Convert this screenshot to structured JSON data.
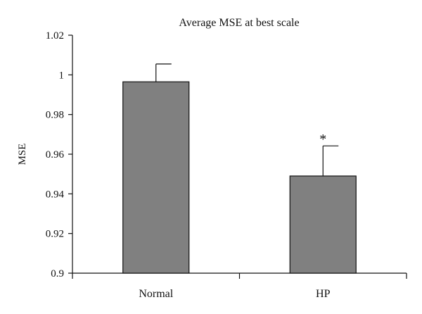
{
  "chart_data": {
    "type": "bar",
    "title": "Average MSE at best scale",
    "xlabel": "",
    "ylabel": "MSE",
    "categories": [
      "Normal",
      "HP"
    ],
    "values": [
      0.9965,
      0.949
    ],
    "error_upper": [
      0.009,
      0.0152
    ],
    "ylim": [
      0.9,
      1.02
    ],
    "yticks": [
      0.9,
      0.92,
      0.94,
      0.96,
      0.98,
      1.0,
      1.02
    ],
    "ytick_labels": [
      "0.9",
      "0.92",
      "0.94",
      "0.96",
      "0.98",
      "1",
      "1.02"
    ],
    "annotations": [
      {
        "category": "HP",
        "text": "*"
      }
    ],
    "bar_color": "#808080",
    "edge_color": "#111111",
    "grid": false,
    "legend": "none"
  }
}
